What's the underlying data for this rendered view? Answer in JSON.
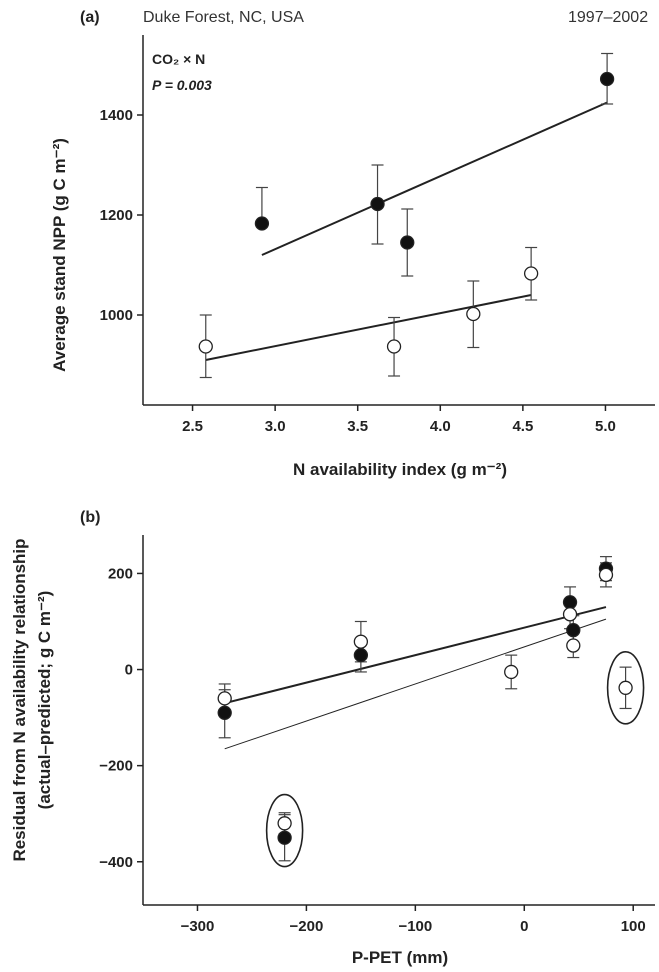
{
  "chart_data": [
    {
      "panel": "(a)",
      "type": "scatter",
      "site": "Duke Forest, NC, USA",
      "period": "1997–2002",
      "annotation": [
        "CO₂ × N",
        "P = 0.003"
      ],
      "xlabel": "N availability index (g m⁻²)",
      "ylabel": "Average stand NPP (g C m⁻²)",
      "xlim": [
        2.2,
        5.3
      ],
      "ylim": [
        820,
        1560
      ],
      "xticks": [
        2.5,
        3.0,
        3.5,
        4.0,
        4.5,
        5.0
      ],
      "xtick_labels": [
        "2.5",
        "3.0",
        "3.5",
        "4.0",
        "4.5",
        "5.0"
      ],
      "yticks": [
        1000,
        1200,
        1400
      ],
      "ytick_labels": [
        "1000",
        "1200",
        "1400"
      ],
      "series": [
        {
          "marker": "filled",
          "points": [
            {
              "x": 2.92,
              "y": 1183,
              "err_hi": 1255,
              "err_lo": null
            },
            {
              "x": 3.62,
              "y": 1222,
              "err_hi": 1300,
              "err_lo": 1142
            },
            {
              "x": 3.8,
              "y": 1145,
              "err_hi": 1212,
              "err_lo": 1078
            },
            {
              "x": 5.01,
              "y": 1472,
              "err_hi": 1523,
              "err_lo": 1422
            }
          ],
          "fit": {
            "x": [
              2.92,
              5.01
            ],
            "y": [
              1120,
              1425
            ]
          }
        },
        {
          "marker": "open",
          "points": [
            {
              "x": 2.58,
              "y": 937,
              "err_hi": 1000,
              "err_lo": 875
            },
            {
              "x": 3.72,
              "y": 937,
              "err_hi": 995,
              "err_lo": 878
            },
            {
              "x": 4.2,
              "y": 1002,
              "err_hi": 1068,
              "err_lo": 935
            },
            {
              "x": 4.55,
              "y": 1083,
              "err_hi": 1135,
              "err_lo": 1030
            }
          ],
          "fit": {
            "x": [
              2.58,
              4.55
            ],
            "y": [
              910,
              1040
            ]
          }
        }
      ]
    },
    {
      "panel": "(b)",
      "type": "scatter",
      "xlabel": "P-PET (mm)",
      "ylabel": [
        "Residual from N availability relationship",
        "(actual–predicted; g C m⁻²)"
      ],
      "xlim": [
        -350,
        120
      ],
      "ylim": [
        -490,
        280
      ],
      "xticks": [
        -300,
        -200,
        -100,
        0,
        100
      ],
      "xtick_labels": [
        "−300",
        "−200",
        "−100",
        "0",
        "100"
      ],
      "yticks": [
        -400,
        -200,
        0,
        200
      ],
      "ytick_labels": [
        "−400",
        "−200",
        "0",
        "200"
      ],
      "series": [
        {
          "marker": "filled",
          "points": [
            {
              "x": -275,
              "y": -90,
              "err_hi": -42,
              "err_lo": -142
            },
            {
              "x": -150,
              "y": 30,
              "err_hi": 65,
              "err_lo": -5
            },
            {
              "x": 42,
              "y": 140,
              "err_hi": 172,
              "err_lo": 108
            },
            {
              "x": 45,
              "y": 82,
              "err_hi": 112,
              "err_lo": 52
            },
            {
              "x": 75,
              "y": 210,
              "err_hi": 235,
              "err_lo": 185
            },
            {
              "x": -220,
              "y": -350,
              "err_hi": -302,
              "err_lo": -398
            }
          ],
          "fit": {
            "x": [
              -275,
              75
            ],
            "y": [
              -70,
              130
            ]
          }
        },
        {
          "marker": "open",
          "points": [
            {
              "x": -275,
              "y": -60,
              "err_hi": -30,
              "err_lo": -90
            },
            {
              "x": -150,
              "y": 58,
              "err_hi": 100,
              "err_lo": 16
            },
            {
              "x": -12,
              "y": -5,
              "err_hi": 30,
              "err_lo": -40
            },
            {
              "x": 42,
              "y": 115,
              "err_hi": 145,
              "err_lo": 85
            },
            {
              "x": 45,
              "y": 50,
              "err_hi": 75,
              "err_lo": 25
            },
            {
              "x": 75,
              "y": 197,
              "err_hi": 222,
              "err_lo": 172
            },
            {
              "x": 93,
              "y": -38,
              "err_hi": 5,
              "err_lo": -81
            },
            {
              "x": -220,
              "y": -320,
              "err_hi": -298,
              "err_lo": -342
            }
          ],
          "fit": {
            "x": [
              -275,
              75
            ],
            "y": [
              -165,
              105
            ]
          }
        }
      ],
      "outliers": [
        {
          "x": -220,
          "y": -335
        },
        {
          "x": 93,
          "y": -38
        }
      ]
    }
  ]
}
